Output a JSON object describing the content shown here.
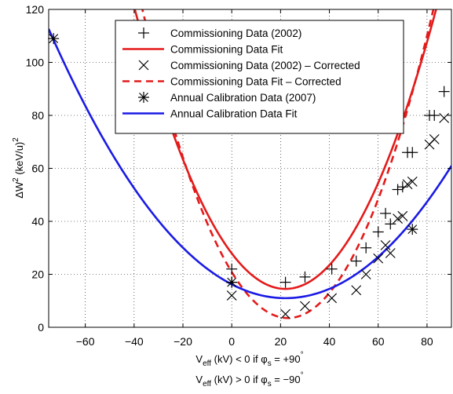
{
  "chart_data": {
    "type": "scatter",
    "title": "",
    "xlabel_lines": [
      {
        "base": "V",
        "sub": "eff",
        "mid": " (kV) < 0 if ",
        "phi": "φ",
        "phi_sub": "s",
        "tail": " = +90",
        "deg": "°"
      },
      {
        "base": "V",
        "sub": "eff",
        "mid": " (kV) > 0 if ",
        "phi": "φ",
        "phi_sub": "s",
        "tail": " = −90",
        "deg": "°"
      }
    ],
    "ylabel": {
      "pre": "ΔW",
      "sup": "2",
      "mid": "  (keV/u)",
      "sup2": "2"
    },
    "xlim": [
      -75,
      90
    ],
    "ylim": [
      0,
      120
    ],
    "xticks": [
      -60,
      -40,
      -20,
      0,
      20,
      40,
      60,
      80
    ],
    "yticks": [
      0,
      20,
      40,
      60,
      80,
      100,
      120
    ],
    "grid": true,
    "legend_position": "top-center",
    "series": [
      {
        "name": "Commissioning Data (2002)",
        "kind": "points",
        "marker": "plus",
        "color": "#000000",
        "x": [
          0,
          0,
          22,
          30,
          41,
          51,
          55,
          60,
          63,
          65,
          68,
          70,
          72,
          74,
          81,
          83,
          87
        ],
        "y": [
          22,
          17,
          17,
          19,
          22,
          25,
          30,
          36,
          43,
          39,
          52,
          53,
          66,
          66,
          80,
          80,
          89
        ]
      },
      {
        "name": "Commissioning Data Fit",
        "kind": "curve",
        "style": "solid",
        "color": "#e41a1a",
        "curve": {
          "a": 0.0277,
          "h": 22,
          "k": 14.5
        }
      },
      {
        "name": "Commissioning Data (2002) – Corrected",
        "kind": "points",
        "marker": "x",
        "color": "#000000",
        "x": [
          0,
          22,
          30,
          41,
          51,
          55,
          60,
          63,
          65,
          68,
          70,
          72,
          74,
          81,
          83,
          87
        ],
        "y": [
          12,
          5,
          8,
          11,
          14,
          20,
          26,
          31,
          28,
          41,
          42,
          54,
          55,
          69,
          71,
          79
        ]
      },
      {
        "name": "Commissioning Data Fit – Corrected",
        "kind": "curve",
        "style": "dashed",
        "color": "#e41a1a",
        "curve": {
          "a": 0.0328,
          "h": 23,
          "k": 3.5
        }
      },
      {
        "name": "Annual Calibration Data (2007)",
        "kind": "points",
        "marker": "asterisk",
        "color": "#000000",
        "x": [
          -73,
          0,
          74
        ],
        "y": [
          109,
          17,
          37
        ]
      },
      {
        "name": "Annual Calibration Data Fit",
        "kind": "curve",
        "style": "solid",
        "color": "#1a1ae6",
        "curve": {
          "a": 0.0108,
          "h": 22,
          "k": 11
        }
      }
    ]
  }
}
